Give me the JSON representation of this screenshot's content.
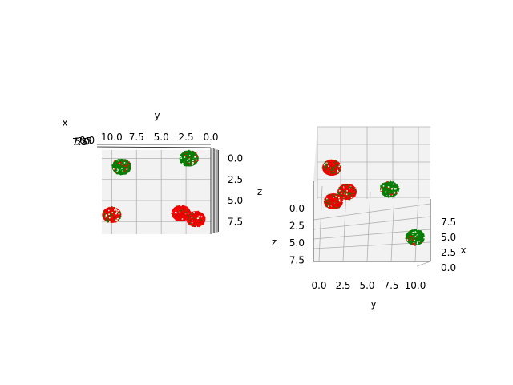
{
  "chart_data": [
    {
      "type": "scatter",
      "projection": "3d",
      "view": "top-down",
      "xlabel": "x",
      "ylabel": "y",
      "zlabel": "z",
      "y_ticks": [
        "10.0",
        "7.5",
        "5.0",
        "2.5",
        "0.0"
      ],
      "z_ticks": [
        "0.0",
        "2.5",
        "5.0",
        "7.5"
      ],
      "x_ticks": [
        "7.5",
        "5.0",
        "2.5",
        "0.0"
      ],
      "ylim": [
        0,
        11
      ],
      "zlim": [
        -1,
        9
      ],
      "clusters": [
        {
          "y": 9.0,
          "z": 1.0,
          "color": "mixed-green"
        },
        {
          "y": 2.2,
          "z": 0.0,
          "color": "mixed-green"
        },
        {
          "y": 10.0,
          "z": 6.7,
          "color": "mixed-red"
        },
        {
          "y": 3.0,
          "z": 6.5,
          "color": "mostly-red"
        },
        {
          "y": 1.5,
          "z": 7.2,
          "color": "mostly-red"
        }
      ],
      "colors": {
        "green": "#008000",
        "red": "#ff0000"
      }
    },
    {
      "type": "scatter",
      "projection": "3d",
      "view": "elevated",
      "xlabel": "x",
      "ylabel": "y",
      "zlabel": "z",
      "y_ticks": [
        "0.0",
        "2.5",
        "5.0",
        "7.5",
        "10.0"
      ],
      "z_ticks": [
        "0.0",
        "2.5",
        "5.0",
        "7.5"
      ],
      "x_ticks": [
        "0.0",
        "2.5",
        "5.0",
        "7.5"
      ],
      "ylim": [
        0,
        11
      ],
      "xlim": [
        0,
        10
      ],
      "clusters": [
        {
          "y": 1.0,
          "x": 6.0,
          "color": "mixed-green"
        },
        {
          "y": 2.0,
          "x": 3.0,
          "color": "mixed-red"
        },
        {
          "y": 3.5,
          "x": 4.0,
          "color": "mixed-red"
        },
        {
          "y": 7.5,
          "x": 5.0,
          "color": "mixed-green"
        },
        {
          "y": 10.5,
          "x": 1.0,
          "color": "mixed-red"
        }
      ],
      "colors": {
        "green": "#008000",
        "red": "#ff0000"
      }
    }
  ]
}
